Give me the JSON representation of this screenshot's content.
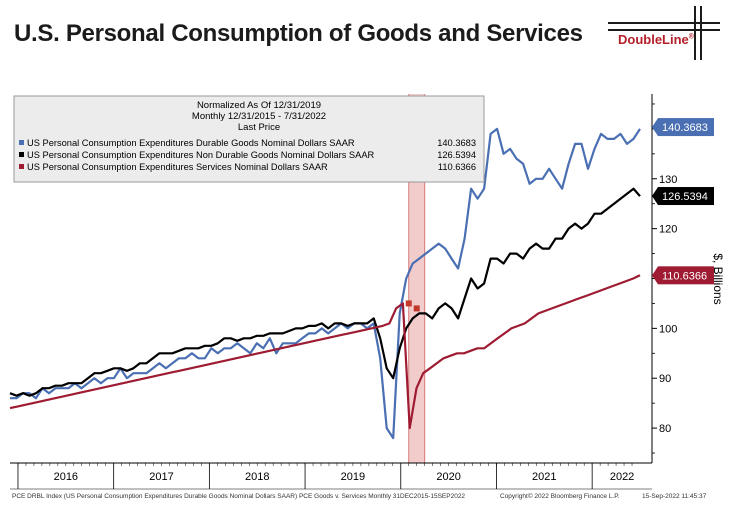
{
  "title": "U.S. Personal Consumption of Goods and Services",
  "logo": {
    "text": "DoubleLine",
    "mark": "®"
  },
  "legend": {
    "header": [
      "Normalized As Of 12/31/2019",
      "Monthly 12/31/2015 - 7/31/2022",
      "Last Price"
    ],
    "entries": [
      {
        "label": "US Personal Consumption Expenditures Durable Goods Nominal Dollars SAAR",
        "value": "140.3683",
        "color": "#4a6fb3"
      },
      {
        "label": "US Personal Consumption Expenditures Non Durable Goods Nominal Dollars SAAR",
        "value": "126.5394",
        "color": "#000000"
      },
      {
        "label": "US Personal Consumption Expenditures Services Nominal Dollars SAAR",
        "value": "110.6366",
        "color": "#9e1b32"
      }
    ]
  },
  "footer": {
    "left": "PCE DRBL Index (US Personal Consumption Expenditures Durable Goods Nominal Dollars SAAR) PCE Goods v. Services  Monthly 31DEC2015-15SEP2022",
    "mid": "Copyright© 2022 Bloomberg Finance L.P.",
    "right": "15-Sep-2022 11:45:37"
  },
  "chart_data": {
    "type": "line",
    "title": "U.S. Personal Consumption of Goods and Services",
    "ylabel": "$, Billions",
    "xlabel": "",
    "ylim": [
      73,
      147
    ],
    "yticks": [
      80,
      90,
      100,
      110,
      120,
      130
    ],
    "x_start": "2015-12",
    "x_end": "2022-07",
    "year_labels": [
      "2016",
      "2017",
      "2018",
      "2019",
      "2020",
      "2021",
      "2022"
    ],
    "recession_shading": {
      "start": "2020-02",
      "end": "2020-04"
    },
    "series": [
      {
        "name": "US Personal Consumption Expenditures Durable Goods Nominal Dollars SAAR",
        "color": "#4a6fb3",
        "last": 140.3683,
        "last_label": "140.3683",
        "values": [
          86,
          86,
          87,
          87,
          86,
          88,
          87,
          88,
          88,
          88,
          89,
          88,
          89,
          90,
          89,
          90,
          90,
          92,
          90,
          91,
          91,
          91,
          92,
          93,
          92,
          93,
          94,
          94,
          95,
          94,
          94,
          96,
          95,
          96,
          96,
          97,
          96,
          95,
          97,
          96,
          98,
          95,
          97,
          97,
          97,
          98,
          99,
          99,
          100,
          99,
          100,
          101,
          100,
          101,
          101,
          100,
          101,
          94,
          80,
          78,
          103,
          110,
          113,
          114,
          115,
          116,
          117,
          116,
          114,
          112,
          118,
          128,
          126,
          128,
          139,
          140,
          135,
          136,
          134,
          133,
          129,
          130,
          130,
          132,
          130,
          128,
          133,
          137,
          137,
          132,
          136,
          139,
          138,
          138,
          139,
          137,
          138,
          140
        ]
      },
      {
        "name": "US Personal Consumption Expenditures Non Durable Goods Nominal Dollars SAAR",
        "color": "#000000",
        "last": 126.5394,
        "last_label": "126.5394",
        "values": [
          87,
          86.5,
          87,
          86.5,
          87,
          88,
          88,
          88.5,
          88.5,
          89,
          89,
          89,
          90,
          91,
          91,
          91.5,
          92,
          92,
          91.5,
          92,
          93,
          93,
          94,
          95,
          95,
          95,
          95.5,
          96,
          96,
          96,
          96.5,
          96.5,
          97,
          98,
          98,
          97.5,
          98,
          98,
          98.5,
          98.5,
          99,
          99,
          99,
          99.5,
          100,
          100,
          100.5,
          100.5,
          101,
          100,
          101,
          101,
          100.5,
          101,
          101,
          101,
          102,
          98,
          92,
          90,
          96,
          100,
          102,
          103,
          103,
          102,
          104,
          105,
          104,
          102,
          106,
          110,
          108,
          109,
          114,
          114,
          113,
          115,
          115,
          114,
          116,
          117,
          116,
          116,
          118,
          118,
          120,
          121,
          120,
          121,
          123,
          123,
          124,
          125,
          126,
          127,
          128,
          126.5
        ]
      },
      {
        "name": "US Personal Consumption Expenditures Services Nominal Dollars SAAR",
        "color": "#9e1b32",
        "last": 110.6366,
        "last_label": "110.6366",
        "values": [
          84,
          84.3,
          84.6,
          84.9,
          85.2,
          85.5,
          85.8,
          86.1,
          86.4,
          86.7,
          87,
          87.3,
          87.6,
          87.9,
          88.2,
          88.5,
          88.8,
          89.1,
          89.4,
          89.7,
          90,
          90.3,
          90.6,
          90.9,
          91.2,
          91.5,
          91.8,
          92.1,
          92.4,
          92.7,
          93,
          93.3,
          93.6,
          93.9,
          94.2,
          94.5,
          94.8,
          95.1,
          95.4,
          95.7,
          96,
          96.3,
          96.6,
          96.9,
          97.2,
          97.5,
          97.8,
          98.1,
          98.4,
          98.7,
          99,
          99.3,
          99.6,
          99.9,
          100.2,
          100.5,
          101,
          104,
          105,
          80,
          88,
          91,
          92,
          93,
          94,
          94.5,
          95,
          95,
          95.5,
          96,
          96,
          97,
          98,
          99,
          100,
          100.5,
          101,
          102,
          103,
          103.5,
          104,
          104.5,
          105,
          105.5,
          106,
          106.5,
          107,
          107.5,
          108,
          108.5,
          109,
          109.5,
          110,
          110.6366
        ]
      }
    ]
  }
}
